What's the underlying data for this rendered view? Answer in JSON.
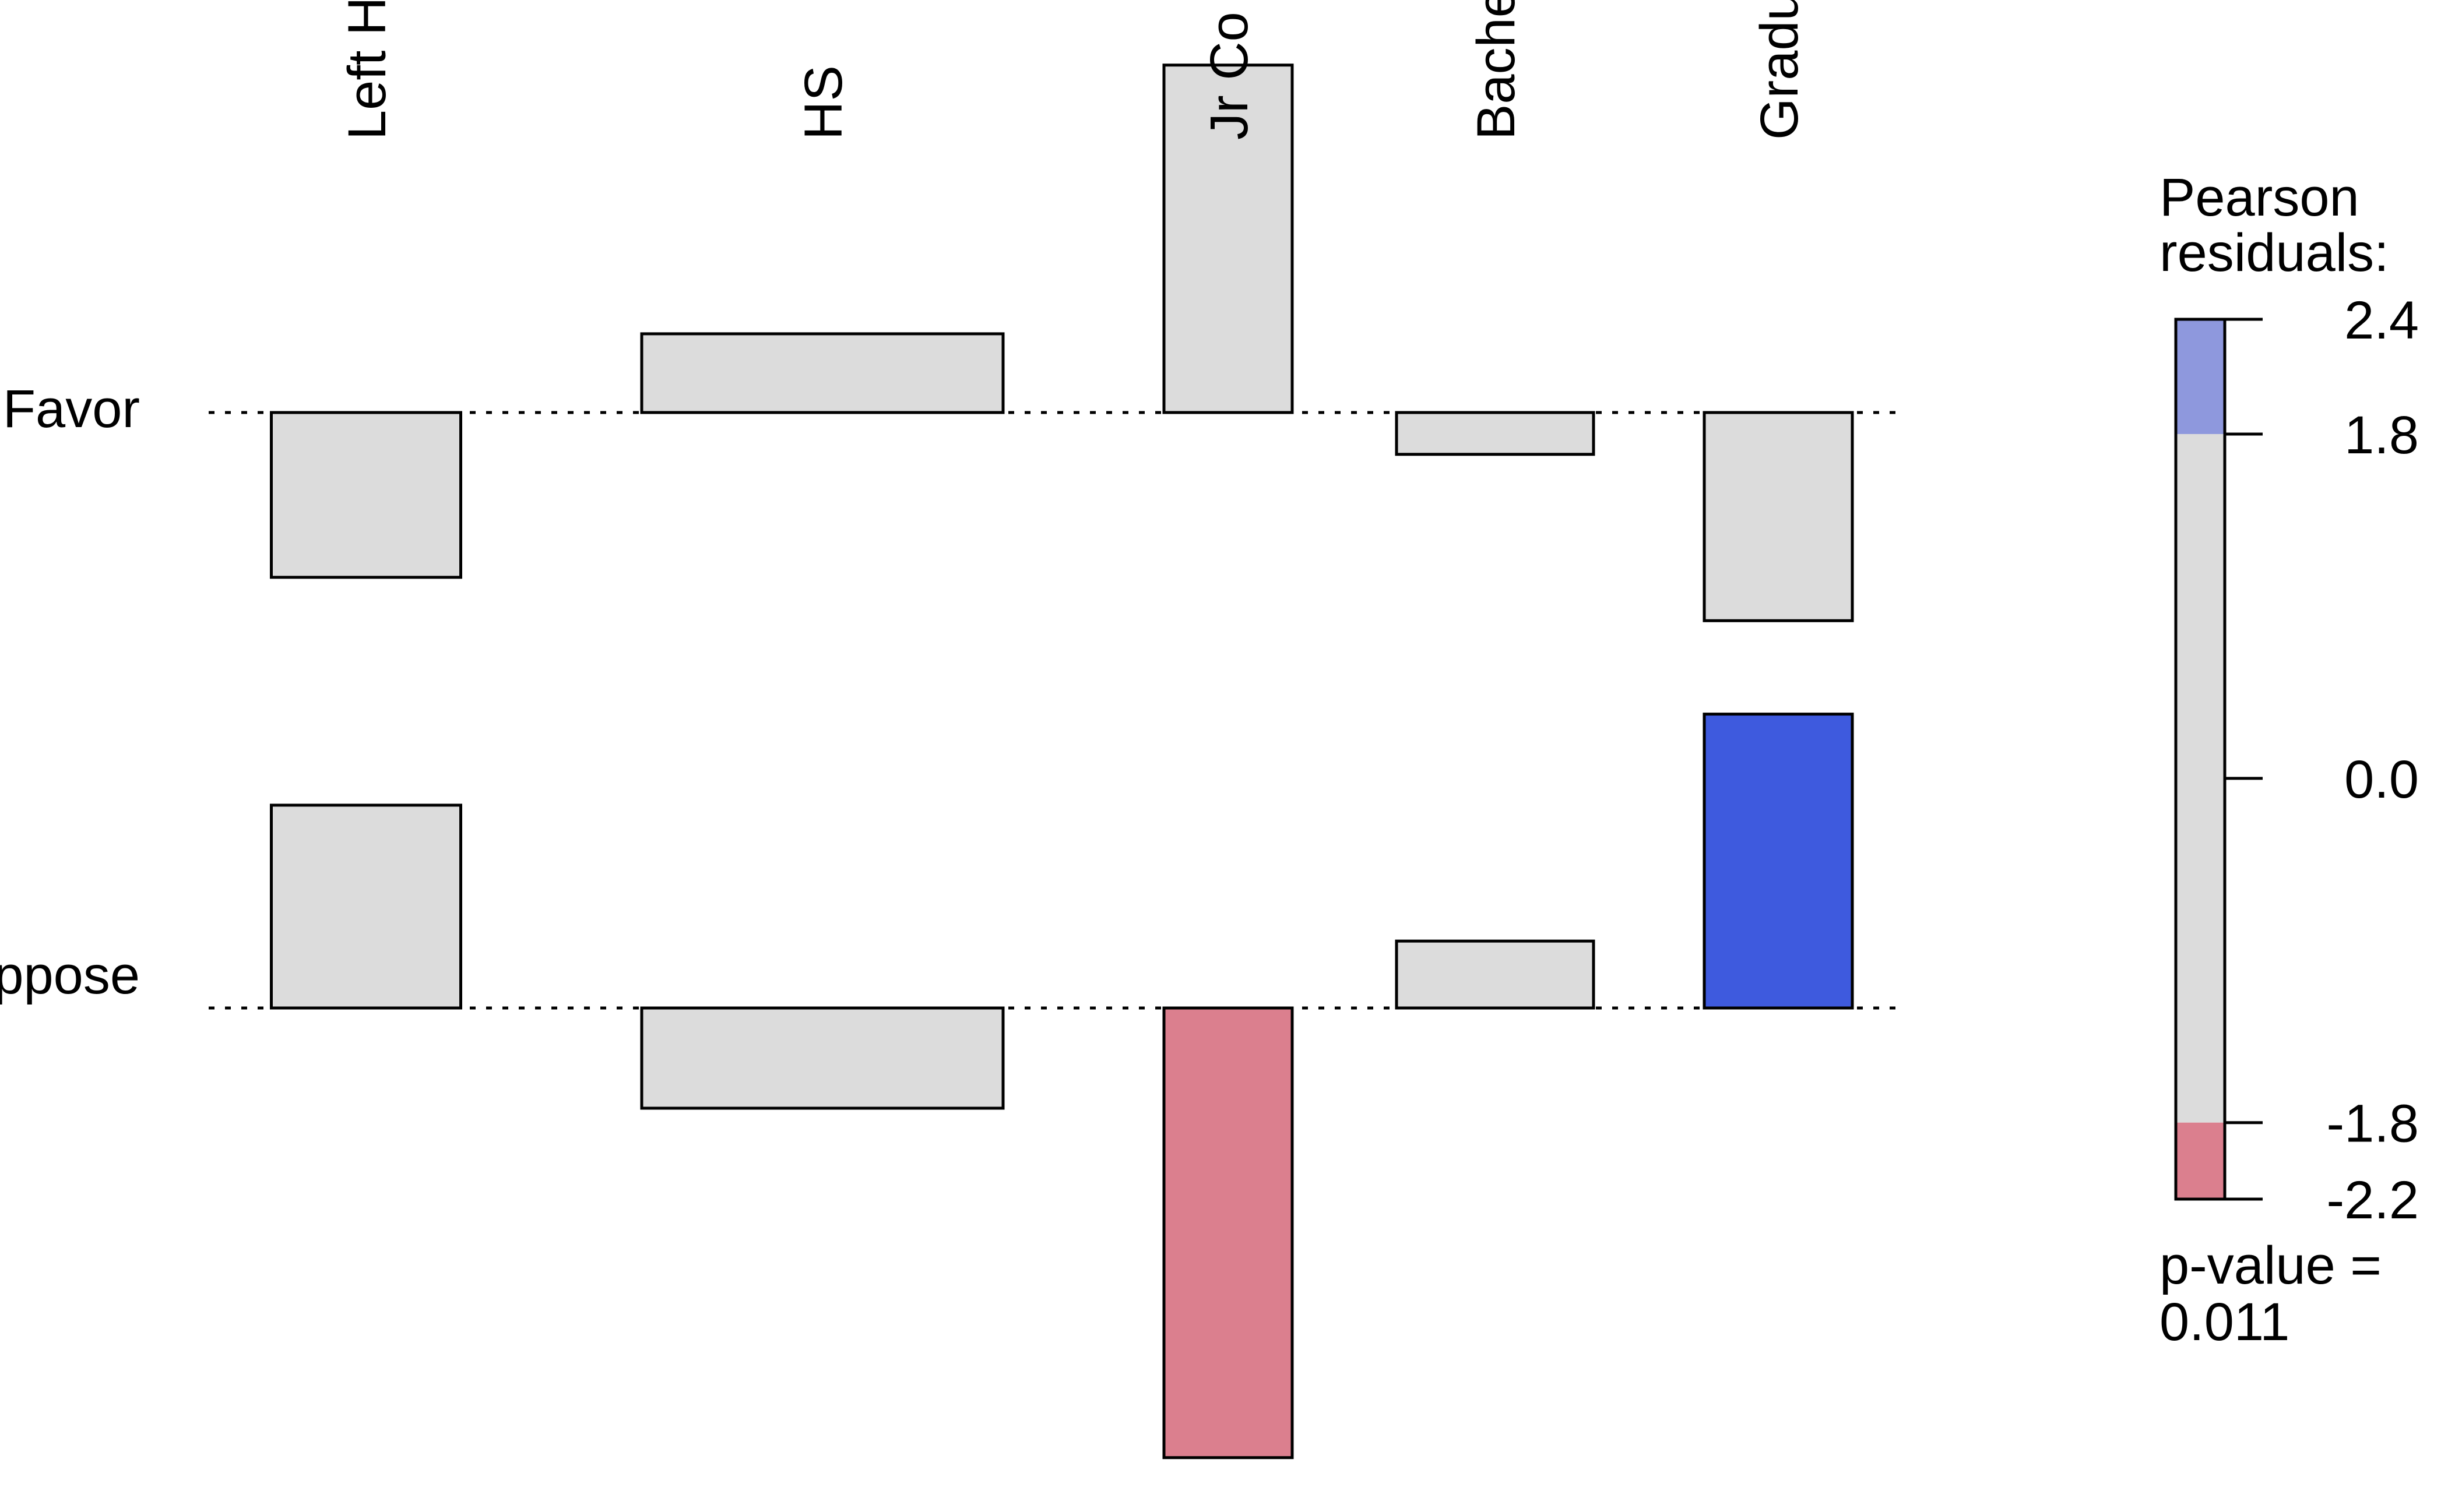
{
  "chart_data": {
    "type": "association",
    "columns": [
      "Left H",
      "HS",
      "Jr Co",
      "Bache",
      "Gradu"
    ],
    "rows": [
      "Favor",
      "ppose"
    ],
    "cells": [
      {
        "row": "Favor",
        "column": "Left H",
        "residual": -1.3,
        "color": "#dcdcdc"
      },
      {
        "row": "Favor",
        "column": "HS",
        "residual": 1.1,
        "color": "#dcdcdc"
      },
      {
        "row": "Favor",
        "column": "Jr Co",
        "residual": 1.7,
        "color": "#dcdcdc"
      },
      {
        "row": "Favor",
        "column": "Bache",
        "residual": -0.5,
        "color": "#dcdcdc"
      },
      {
        "row": "Favor",
        "column": "Gradu",
        "residual": -1.7,
        "color": "#dcdcdc"
      },
      {
        "row": "ppose",
        "column": "Left H",
        "residual": 1.6,
        "color": "#dcdcdc"
      },
      {
        "row": "ppose",
        "column": "HS",
        "residual": -1.4,
        "color": "#dcdcdc"
      },
      {
        "row": "ppose",
        "column": "Jr Co",
        "residual": -2.2,
        "color": "#db7f8e"
      },
      {
        "row": "ppose",
        "column": "Bache",
        "residual": 0.8,
        "color": "#dcdcdc"
      },
      {
        "row": "ppose",
        "column": "Gradu",
        "residual": 2.4,
        "color": "#3e5ade"
      }
    ],
    "legend": {
      "title_line1": "Pearson",
      "title_line2": "residuals:",
      "tick_labels": [
        "2.4",
        "1.8",
        "0.0",
        "-1.8",
        "-2.2"
      ],
      "tick_values": [
        2.4,
        1.8,
        0.0,
        -1.8,
        -2.2
      ],
      "range": [
        -2.2,
        2.4
      ],
      "bands": [
        {
          "from": 1.8,
          "to": 2.4,
          "color": "#8e98dd"
        },
        {
          "from": -1.8,
          "to": 1.8,
          "color": "#dcdcdc"
        },
        {
          "from": -2.2,
          "to": -1.8,
          "color": "#db7f8e"
        }
      ],
      "placement": "right"
    },
    "p_value_line1": "p-value =",
    "p_value_line2": "0.011"
  }
}
